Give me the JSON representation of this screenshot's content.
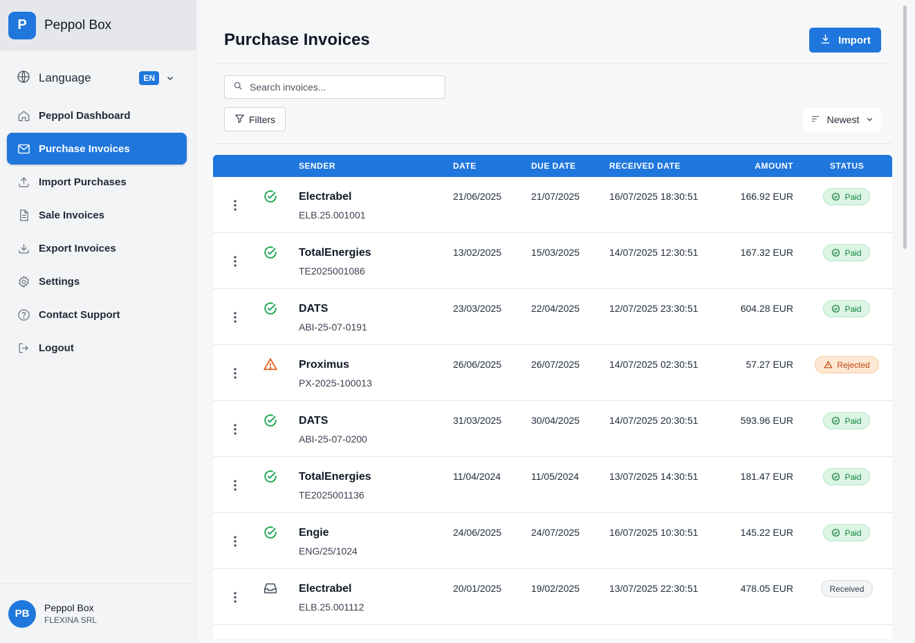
{
  "brand": {
    "logo_letter": "P",
    "name": "Peppol Box"
  },
  "language": {
    "label": "Language",
    "code": "EN"
  },
  "nav": [
    {
      "label": "Peppol Dashboard",
      "icon": "home-icon",
      "active": false
    },
    {
      "label": "Purchase Invoices",
      "icon": "mail-icon",
      "active": true
    },
    {
      "label": "Import Purchases",
      "icon": "upload-icon",
      "active": false
    },
    {
      "label": "Sale Invoices",
      "icon": "document-icon",
      "active": false
    },
    {
      "label": "Export Invoices",
      "icon": "download-icon",
      "active": false
    },
    {
      "label": "Settings",
      "icon": "gear-icon",
      "active": false
    },
    {
      "label": "Contact Support",
      "icon": "help-icon",
      "active": false
    },
    {
      "label": "Logout",
      "icon": "logout-icon",
      "active": false
    }
  ],
  "user": {
    "initials": "PB",
    "name": "Peppol Box",
    "company": "FLEXINA SRL"
  },
  "page": {
    "title": "Purchase Invoices",
    "import_label": "Import",
    "search_placeholder": "Search invoices...",
    "filters_label": "Filters",
    "sort_label": "Newest"
  },
  "table": {
    "columns": {
      "sender": "SENDER",
      "date": "DATE",
      "due_date": "DUE DATE",
      "received_date": "RECEIVED DATE",
      "amount": "AMOUNT",
      "status": "STATUS"
    },
    "rows": [
      {
        "sender": "Electrabel",
        "ref": "ELB.25.001001",
        "date": "21/06/2025",
        "due": "21/07/2025",
        "received": "16/07/2025 18:30:51",
        "amount": "166.92 EUR",
        "status": "Paid",
        "kind": "paid"
      },
      {
        "sender": "TotalEnergies",
        "ref": "TE2025001086",
        "date": "13/02/2025",
        "due": "15/03/2025",
        "received": "14/07/2025 12:30:51",
        "amount": "167.32 EUR",
        "status": "Paid",
        "kind": "paid"
      },
      {
        "sender": "DATS",
        "ref": "ABI-25-07-0191",
        "date": "23/03/2025",
        "due": "22/04/2025",
        "received": "12/07/2025 23:30:51",
        "amount": "604.28 EUR",
        "status": "Paid",
        "kind": "paid"
      },
      {
        "sender": "Proximus",
        "ref": "PX-2025-100013",
        "date": "26/06/2025",
        "due": "26/07/2025",
        "received": "14/07/2025 02:30:51",
        "amount": "57.27 EUR",
        "status": "Rejected",
        "kind": "rejected"
      },
      {
        "sender": "DATS",
        "ref": "ABI-25-07-0200",
        "date": "31/03/2025",
        "due": "30/04/2025",
        "received": "14/07/2025 20:30:51",
        "amount": "593.96 EUR",
        "status": "Paid",
        "kind": "paid"
      },
      {
        "sender": "TotalEnergies",
        "ref": "TE2025001136",
        "date": "11/04/2024",
        "due": "11/05/2024",
        "received": "13/07/2025 14:30:51",
        "amount": "181.47 EUR",
        "status": "Paid",
        "kind": "paid"
      },
      {
        "sender": "Engie",
        "ref": "ENG/25/1024",
        "date": "24/06/2025",
        "due": "24/07/2025",
        "received": "16/07/2025 10:30:51",
        "amount": "145.22 EUR",
        "status": "Paid",
        "kind": "paid"
      },
      {
        "sender": "Electrabel",
        "ref": "ELB.25.001112",
        "date": "20/01/2025",
        "due": "19/02/2025",
        "received": "13/07/2025 22:30:51",
        "amount": "478.05 EUR",
        "status": "Received",
        "kind": "received"
      }
    ]
  },
  "colors": {
    "accent": "#1f77dd",
    "paid": "#15803d",
    "rejected": "#c2410c"
  }
}
